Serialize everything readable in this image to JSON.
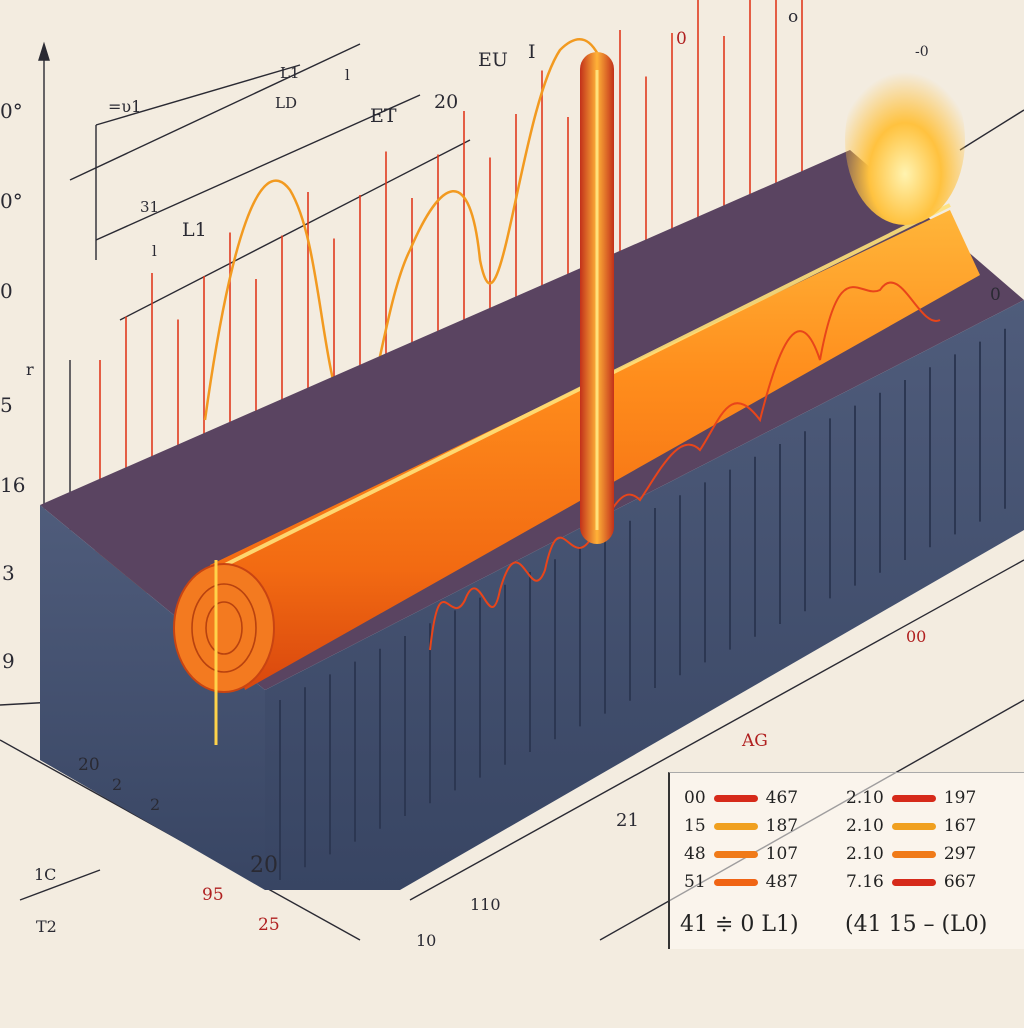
{
  "labels": {
    "top": [
      "EU",
      "I",
      "ET",
      "20",
      "0",
      "-0",
      "L1",
      "LD",
      "l"
    ],
    "left": [
      "0°",
      "0°",
      "0",
      "r",
      "5",
      "16",
      "3",
      "9"
    ],
    "mid_small": [
      "=υ1",
      "31",
      "l",
      "L1"
    ],
    "right": [
      "o",
      "0"
    ],
    "bottom": [
      "20",
      "2",
      "2",
      "20",
      "95",
      "25",
      "1C",
      "T2",
      "10",
      "110",
      "21",
      "AG",
      "00"
    ]
  },
  "legend": {
    "left_rows": [
      {
        "key": "00",
        "value": "467",
        "color": "#d62a1a"
      },
      {
        "key": "15",
        "value": "187",
        "color": "#f0a020"
      },
      {
        "key": "48",
        "value": "107",
        "color": "#f07a18"
      },
      {
        "key": "51",
        "value": "487",
        "color": "#f06414"
      }
    ],
    "right_rows": [
      {
        "key": "2.10",
        "value": "197",
        "color": "#d62a1a"
      },
      {
        "key": "2.10",
        "value": "167",
        "color": "#f0a020"
      },
      {
        "key": "2.10",
        "value": "297",
        "color": "#f07a18"
      },
      {
        "key": "7.16",
        "value": "667",
        "color": "#d62a1a"
      }
    ],
    "footer_left": "41 ≑ 0 L1)",
    "footer_right": "(41 15 – (L0)"
  },
  "colors": {
    "background": "#f3ece0",
    "block": "#3f4f6e",
    "rod": "#f58a1c",
    "glow": "#ffcf4a",
    "axis": "#2a2a33"
  }
}
